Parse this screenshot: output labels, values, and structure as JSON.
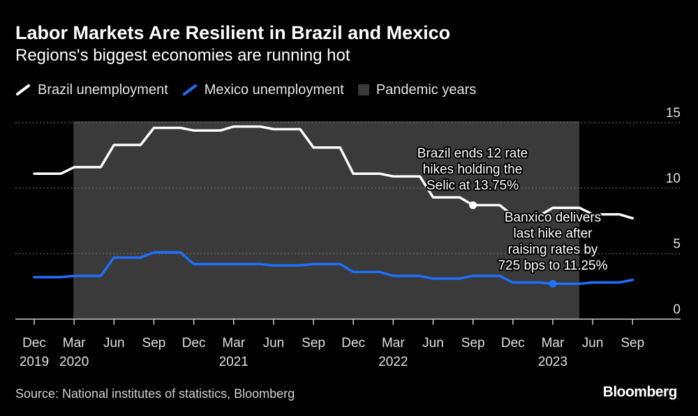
{
  "header": {
    "title": "Labor Markets Are Resilient in Brazil and Mexico",
    "subtitle": "Regions's biggest economies are running hot"
  },
  "legend": {
    "items": [
      {
        "label": "Brazil unemployment",
        "color": "#ffffff",
        "kind": "line"
      },
      {
        "label": "Mexico unemployment",
        "color": "#1f6fff",
        "kind": "line"
      },
      {
        "label": "Pandemic years",
        "color": "#3a3a3a",
        "kind": "box"
      }
    ]
  },
  "footer": {
    "source": "Source: National institutes of statistics, Bloomberg",
    "brand": "Bloomberg"
  },
  "chart_data": {
    "type": "line",
    "title": "Labor Markets Are Resilient in Brazil and Mexico",
    "subtitle": "Regions's biggest economies are running hot",
    "ylim": [
      0,
      15
    ],
    "yticks": [
      0,
      5,
      10,
      15
    ],
    "y_axis_side": "right",
    "grid": true,
    "x_ticks": [
      {
        "month": "Dec",
        "year": "2019",
        "index": 0
      },
      {
        "month": "Mar",
        "year": "2020",
        "index": 3
      },
      {
        "month": "Jun",
        "year": "",
        "index": 6
      },
      {
        "month": "Sep",
        "year": "",
        "index": 9
      },
      {
        "month": "Dec",
        "year": "",
        "index": 12
      },
      {
        "month": "Mar",
        "year": "2021",
        "index": 15
      },
      {
        "month": "Jun",
        "year": "",
        "index": 18
      },
      {
        "month": "Sep",
        "year": "",
        "index": 21
      },
      {
        "month": "Dec",
        "year": "",
        "index": 24
      },
      {
        "month": "Mar",
        "year": "2022",
        "index": 27
      },
      {
        "month": "Jun",
        "year": "",
        "index": 30
      },
      {
        "month": "Sep",
        "year": "",
        "index": 33
      },
      {
        "month": "Dec",
        "year": "",
        "index": 36
      },
      {
        "month": "Mar",
        "year": "2023",
        "index": 39
      },
      {
        "month": "Jun",
        "year": "",
        "index": 42
      },
      {
        "month": "Sep",
        "year": "",
        "index": 45
      }
    ],
    "x_range": [
      0,
      47
    ],
    "shaded_region": {
      "label": "Pandemic years",
      "start_index": 3,
      "end_index": 41
    },
    "series": [
      {
        "name": "Brazil unemployment",
        "color": "#ffffff",
        "points": [
          [
            0,
            11.1
          ],
          [
            2,
            11.1
          ],
          [
            3,
            11.6
          ],
          [
            5,
            11.6
          ],
          [
            6,
            13.3
          ],
          [
            8,
            13.3
          ],
          [
            9,
            14.6
          ],
          [
            11,
            14.6
          ],
          [
            12,
            14.4
          ],
          [
            14,
            14.4
          ],
          [
            15,
            14.7
          ],
          [
            17,
            14.7
          ],
          [
            18,
            14.5
          ],
          [
            20,
            14.5
          ],
          [
            21,
            13.1
          ],
          [
            23,
            13.1
          ],
          [
            24,
            11.1
          ],
          [
            26,
            11.1
          ],
          [
            27,
            10.9
          ],
          [
            29,
            10.9
          ],
          [
            30,
            9.3
          ],
          [
            32,
            9.3
          ],
          [
            33,
            8.7
          ],
          [
            35,
            8.7
          ],
          [
            36,
            7.9
          ],
          [
            38,
            7.9
          ],
          [
            39,
            8.5
          ],
          [
            41,
            8.5
          ],
          [
            42,
            8.0
          ],
          [
            44,
            8.0
          ],
          [
            45,
            7.7
          ]
        ]
      },
      {
        "name": "Mexico unemployment",
        "color": "#1f6fff",
        "points": [
          [
            0,
            3.2
          ],
          [
            2,
            3.2
          ],
          [
            3,
            3.3
          ],
          [
            5,
            3.3
          ],
          [
            6,
            4.7
          ],
          [
            8,
            4.7
          ],
          [
            9,
            5.1
          ],
          [
            11,
            5.1
          ],
          [
            12,
            4.2
          ],
          [
            14,
            4.2
          ],
          [
            15,
            4.2
          ],
          [
            17,
            4.2
          ],
          [
            18,
            4.1
          ],
          [
            20,
            4.1
          ],
          [
            21,
            4.2
          ],
          [
            23,
            4.2
          ],
          [
            24,
            3.6
          ],
          [
            26,
            3.6
          ],
          [
            27,
            3.3
          ],
          [
            29,
            3.3
          ],
          [
            30,
            3.1
          ],
          [
            32,
            3.1
          ],
          [
            33,
            3.3
          ],
          [
            35,
            3.3
          ],
          [
            36,
            2.8
          ],
          [
            38,
            2.8
          ],
          [
            39,
            2.7
          ],
          [
            41,
            2.7
          ],
          [
            42,
            2.8
          ],
          [
            44,
            2.8
          ],
          [
            45,
            3.0
          ]
        ]
      }
    ],
    "annotations": [
      {
        "series": 0,
        "index": 33,
        "value": 8.7,
        "lines": [
          "Brazil ends 12 rate",
          "hikes holding the",
          "Selic at 13.75%"
        ]
      },
      {
        "series": 1,
        "index": 39,
        "value": 2.7,
        "lines": [
          "Banxico delivers",
          "last hike after",
          "raising rates by",
          "725 bps to 11.25%"
        ]
      }
    ]
  }
}
